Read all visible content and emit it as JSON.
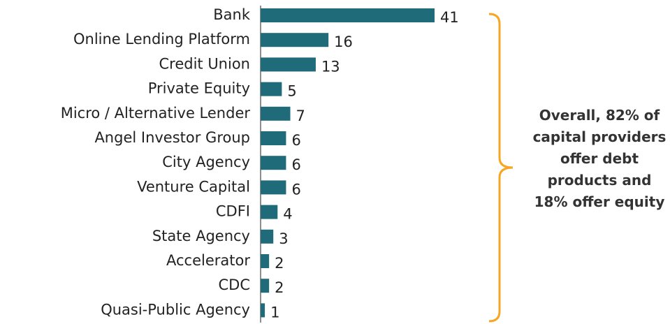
{
  "chart_data": {
    "type": "bar",
    "orientation": "horizontal",
    "categories": [
      "Bank",
      "Online Lending Platform",
      "Credit Union",
      "Private Equity",
      "Micro / Alternative Lender",
      "Angel Investor Group",
      "City Agency",
      "Venture Capital",
      "CDFI",
      "State Agency",
      "Accelerator",
      "CDC",
      "Quasi-Public Agency"
    ],
    "values": [
      41,
      16,
      13,
      5,
      7,
      6,
      6,
      6,
      4,
      3,
      2,
      2,
      1
    ],
    "color": "#1f6b7a",
    "annotation": "Overall, 82% of capital providers offer debt products and 18% offer equity"
  }
}
